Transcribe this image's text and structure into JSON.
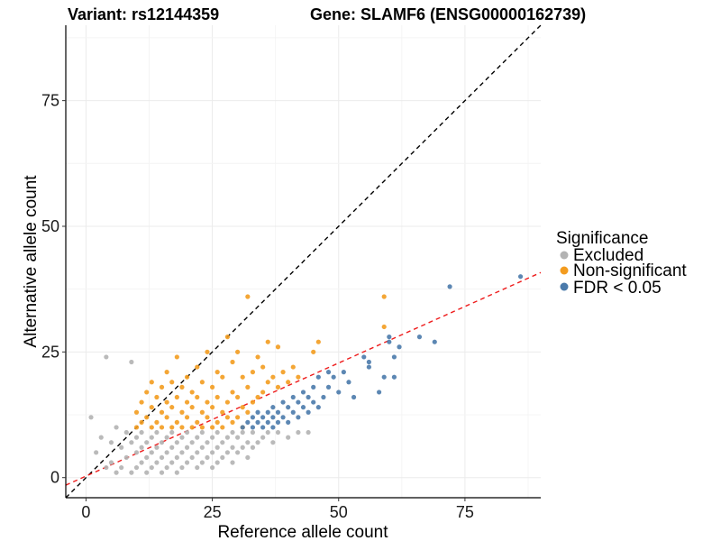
{
  "chart_data": {
    "type": "scatter",
    "title_left": "Variant: rs12144359",
    "title_right": "Gene: SLAMF6 (ENSG00000162739)",
    "xlabel": "Reference allele count",
    "ylabel": "Alternative allele count",
    "xlim": [
      -4,
      90
    ],
    "ylim": [
      -4,
      90
    ],
    "xticks": [
      0,
      25,
      50,
      75
    ],
    "yticks": [
      0,
      25,
      50,
      75
    ],
    "xtick_labels": [
      "0",
      "25",
      "50",
      "75"
    ],
    "ytick_labels": [
      "0",
      "25",
      "50",
      "75"
    ],
    "grid": true,
    "legend": {
      "title": "Significance",
      "position": "right",
      "entries": [
        {
          "key": "excluded",
          "label": "Excluded",
          "color": "#b3b3b3"
        },
        {
          "key": "nonsig",
          "label": "Non-significant",
          "color": "#f39c1f"
        },
        {
          "key": "fdr",
          "label": "FDR < 0.05",
          "color": "#4a7aab"
        }
      ]
    },
    "reference_lines": [
      {
        "name": "identity",
        "color": "#000000",
        "dash": "dashed",
        "slope": 1,
        "intercept": 0
      },
      {
        "name": "fit",
        "color": "#ee1c1c",
        "dash": "dashed",
        "slope": 0.45,
        "intercept": 0.3
      }
    ],
    "series": [
      {
        "name": "Excluded",
        "color": "#b3b3b3",
        "points": [
          [
            1,
            12
          ],
          [
            2,
            5
          ],
          [
            3,
            8
          ],
          [
            4,
            2
          ],
          [
            4,
            24
          ],
          [
            5,
            3
          ],
          [
            5,
            7
          ],
          [
            6,
            1
          ],
          [
            6,
            10
          ],
          [
            7,
            2
          ],
          [
            7,
            6
          ],
          [
            8,
            4
          ],
          [
            8,
            9
          ],
          [
            9,
            1
          ],
          [
            9,
            7
          ],
          [
            9,
            23
          ],
          [
            10,
            2
          ],
          [
            10,
            5
          ],
          [
            10,
            8
          ],
          [
            11,
            3
          ],
          [
            11,
            6
          ],
          [
            11,
            9
          ],
          [
            12,
            1
          ],
          [
            12,
            4
          ],
          [
            12,
            7
          ],
          [
            13,
            2
          ],
          [
            13,
            5
          ],
          [
            13,
            8
          ],
          [
            14,
            3
          ],
          [
            14,
            6
          ],
          [
            14,
            9
          ],
          [
            15,
            1
          ],
          [
            15,
            4
          ],
          [
            15,
            7
          ],
          [
            16,
            2
          ],
          [
            16,
            5
          ],
          [
            16,
            8
          ],
          [
            17,
            3
          ],
          [
            17,
            6
          ],
          [
            17,
            9
          ],
          [
            18,
            1
          ],
          [
            18,
            4
          ],
          [
            18,
            7
          ],
          [
            19,
            2
          ],
          [
            19,
            5
          ],
          [
            19,
            8
          ],
          [
            20,
            3
          ],
          [
            20,
            6
          ],
          [
            20,
            9
          ],
          [
            21,
            4
          ],
          [
            21,
            7
          ],
          [
            22,
            2
          ],
          [
            22,
            5
          ],
          [
            22,
            8
          ],
          [
            23,
            3
          ],
          [
            23,
            6
          ],
          [
            23,
            9
          ],
          [
            24,
            4
          ],
          [
            24,
            7
          ],
          [
            25,
            2
          ],
          [
            25,
            5
          ],
          [
            25,
            8
          ],
          [
            26,
            3
          ],
          [
            26,
            6
          ],
          [
            26,
            9
          ],
          [
            27,
            4
          ],
          [
            27,
            7
          ],
          [
            28,
            5
          ],
          [
            28,
            8
          ],
          [
            29,
            3
          ],
          [
            29,
            6
          ],
          [
            29,
            9
          ],
          [
            30,
            5
          ],
          [
            30,
            8
          ],
          [
            31,
            6
          ],
          [
            31,
            9
          ],
          [
            32,
            4
          ],
          [
            32,
            7
          ],
          [
            33,
            6
          ],
          [
            33,
            9
          ],
          [
            34,
            7
          ],
          [
            35,
            8
          ],
          [
            36,
            9
          ],
          [
            37,
            7
          ],
          [
            38,
            9
          ],
          [
            40,
            8
          ],
          [
            42,
            9
          ],
          [
            44,
            9
          ]
        ]
      },
      {
        "name": "Non-significant",
        "color": "#f39c1f",
        "points": [
          [
            10,
            10
          ],
          [
            10,
            13
          ],
          [
            11,
            11
          ],
          [
            11,
            15
          ],
          [
            12,
            12
          ],
          [
            12,
            17
          ],
          [
            13,
            10
          ],
          [
            13,
            14
          ],
          [
            13,
            19
          ],
          [
            14,
            11
          ],
          [
            14,
            16
          ],
          [
            15,
            10
          ],
          [
            15,
            13
          ],
          [
            15,
            18
          ],
          [
            16,
            12
          ],
          [
            16,
            15
          ],
          [
            16,
            21
          ],
          [
            17,
            10
          ],
          [
            17,
            14
          ],
          [
            17,
            19
          ],
          [
            18,
            11
          ],
          [
            18,
            16
          ],
          [
            18,
            24
          ],
          [
            19,
            10
          ],
          [
            19,
            13
          ],
          [
            19,
            18
          ],
          [
            20,
            12
          ],
          [
            20,
            15
          ],
          [
            20,
            20
          ],
          [
            21,
            10
          ],
          [
            21,
            14
          ],
          [
            21,
            17
          ],
          [
            22,
            11
          ],
          [
            22,
            16
          ],
          [
            22,
            22
          ],
          [
            23,
            10
          ],
          [
            23,
            13
          ],
          [
            23,
            19
          ],
          [
            24,
            12
          ],
          [
            24,
            15
          ],
          [
            24,
            25
          ],
          [
            25,
            10
          ],
          [
            25,
            14
          ],
          [
            25,
            18
          ],
          [
            26,
            11
          ],
          [
            26,
            16
          ],
          [
            26,
            21
          ],
          [
            27,
            10
          ],
          [
            27,
            13
          ],
          [
            27,
            20
          ],
          [
            28,
            12
          ],
          [
            28,
            15
          ],
          [
            28,
            28
          ],
          [
            29,
            11
          ],
          [
            29,
            17
          ],
          [
            29,
            23
          ],
          [
            30,
            12
          ],
          [
            30,
            16
          ],
          [
            30,
            25
          ],
          [
            31,
            10
          ],
          [
            31,
            14
          ],
          [
            31,
            20
          ],
          [
            32,
            13
          ],
          [
            32,
            18
          ],
          [
            32,
            36
          ],
          [
            33,
            15
          ],
          [
            33,
            21
          ],
          [
            34,
            16
          ],
          [
            34,
            24
          ],
          [
            35,
            17
          ],
          [
            35,
            22
          ],
          [
            36,
            19
          ],
          [
            36,
            27
          ],
          [
            37,
            20
          ],
          [
            38,
            18
          ],
          [
            38,
            26
          ],
          [
            39,
            21
          ],
          [
            40,
            19
          ],
          [
            41,
            22
          ],
          [
            42,
            20
          ],
          [
            45,
            25
          ],
          [
            46,
            27
          ],
          [
            59,
            36
          ],
          [
            59,
            30
          ]
        ]
      },
      {
        "name": "FDR < 0.05",
        "color": "#4a7aab",
        "points": [
          [
            31,
            10
          ],
          [
            32,
            11
          ],
          [
            33,
            10
          ],
          [
            33,
            12
          ],
          [
            34,
            11
          ],
          [
            34,
            13
          ],
          [
            35,
            10
          ],
          [
            35,
            12
          ],
          [
            36,
            11
          ],
          [
            36,
            13
          ],
          [
            37,
            10
          ],
          [
            37,
            12
          ],
          [
            37,
            14
          ],
          [
            38,
            11
          ],
          [
            38,
            13
          ],
          [
            39,
            12
          ],
          [
            39,
            15
          ],
          [
            40,
            11
          ],
          [
            40,
            14
          ],
          [
            41,
            13
          ],
          [
            41,
            16
          ],
          [
            42,
            12
          ],
          [
            42,
            15
          ],
          [
            43,
            14
          ],
          [
            43,
            17
          ],
          [
            44,
            13
          ],
          [
            44,
            16
          ],
          [
            45,
            15
          ],
          [
            45,
            18
          ],
          [
            46,
            14
          ],
          [
            46,
            20
          ],
          [
            47,
            16
          ],
          [
            48,
            18
          ],
          [
            48,
            21
          ],
          [
            49,
            20
          ],
          [
            50,
            17
          ],
          [
            51,
            21
          ],
          [
            52,
            19
          ],
          [
            53,
            16
          ],
          [
            55,
            24
          ],
          [
            56,
            22
          ],
          [
            56,
            23
          ],
          [
            58,
            17
          ],
          [
            59,
            20
          ],
          [
            60,
            27
          ],
          [
            60,
            28
          ],
          [
            61,
            20
          ],
          [
            61,
            24
          ],
          [
            62,
            26
          ],
          [
            66,
            28
          ],
          [
            69,
            27
          ],
          [
            72,
            38
          ],
          [
            86,
            40
          ]
        ]
      }
    ]
  }
}
